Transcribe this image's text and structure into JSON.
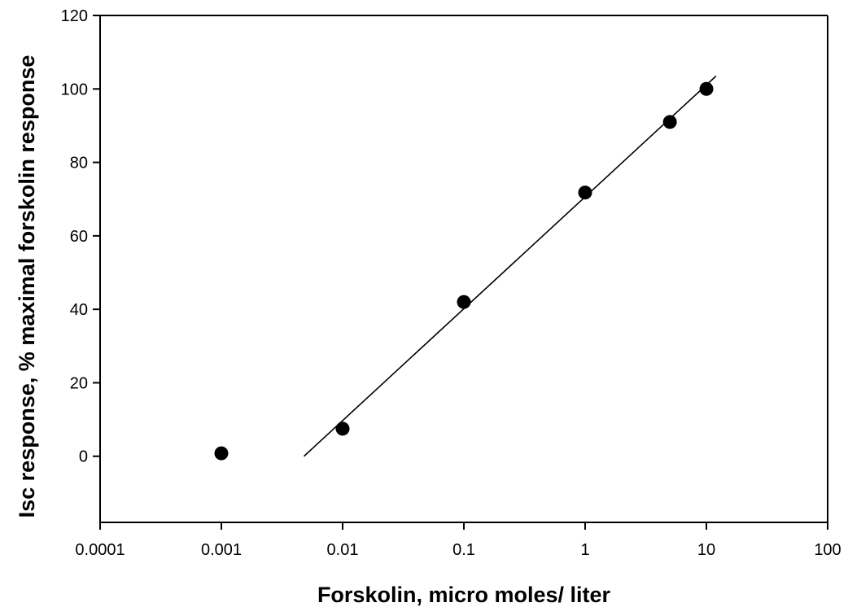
{
  "chart_data": {
    "type": "scatter",
    "xlabel": "Forskolin, micro moles/ liter",
    "ylabel": "Isc response, % maximal forskolin response",
    "x_scale": "log",
    "xlim": [
      0.0001,
      100
    ],
    "ylim": [
      -18,
      120
    ],
    "x_ticks": [
      0.0001,
      0.001,
      0.01,
      0.1,
      1,
      10,
      100
    ],
    "x_tick_labels": [
      "0.0001",
      "0.001",
      "0.01",
      "0.1",
      "1",
      "10",
      "100"
    ],
    "y_ticks": [
      0,
      20,
      40,
      60,
      80,
      100,
      120
    ],
    "y_tick_labels": [
      "0",
      "20",
      "40",
      "60",
      "80",
      "100",
      "120"
    ],
    "grid": false,
    "series": [
      {
        "marker": "filled-circle",
        "color": "#000000",
        "x": [
          0.001,
          0.01,
          0.1,
          1,
          5,
          10
        ],
        "y": [
          0.8,
          7.5,
          42,
          71.8,
          91,
          100
        ]
      }
    ],
    "fit_line": {
      "style": "solid",
      "color": "#000000",
      "x": [
        0.0048,
        12
      ],
      "y": [
        0,
        103.5
      ]
    }
  }
}
